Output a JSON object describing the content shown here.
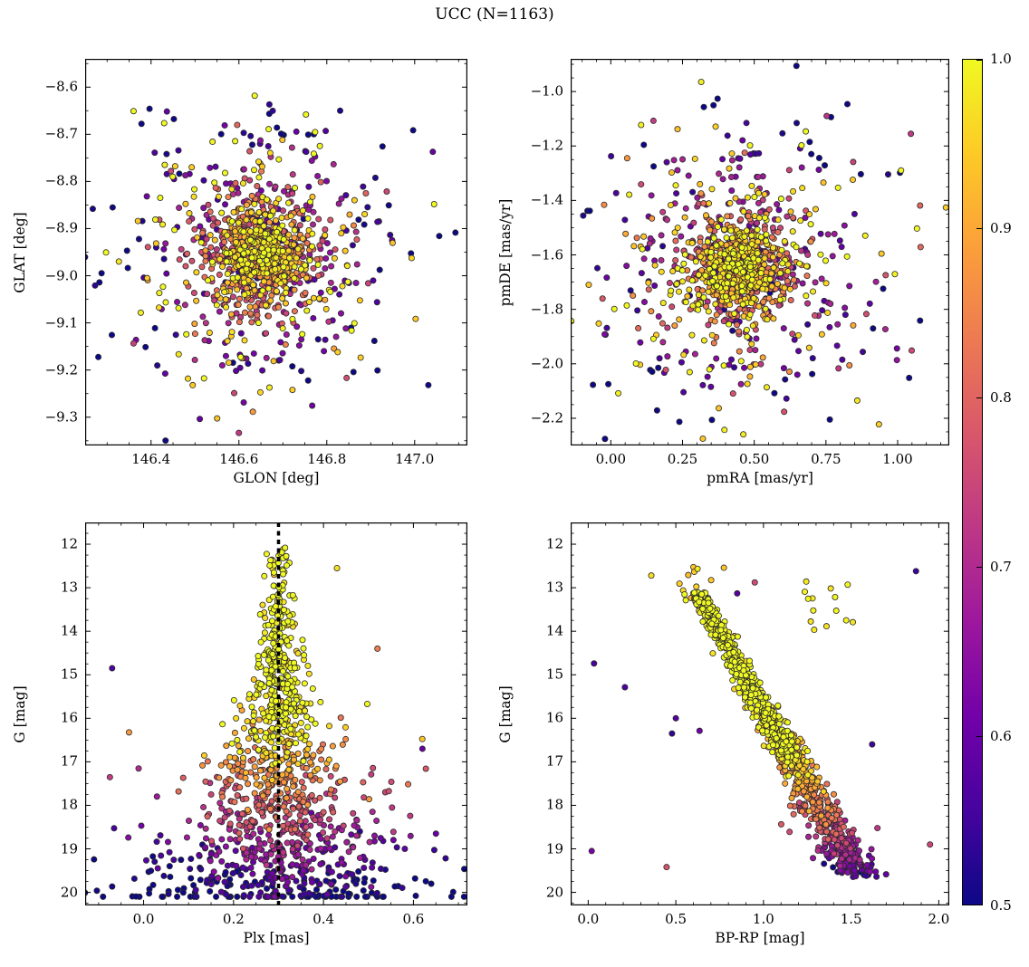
{
  "figure": {
    "title": "UCC (N=1163)",
    "background": "#ffffff",
    "n_members": 1163
  },
  "colorbar": {
    "min": 0.5,
    "max": 1.0,
    "tick_values": [
      1.0,
      0.9,
      0.8,
      0.7,
      0.6,
      0.5
    ],
    "tick_labels": [
      "1.0",
      "0.9",
      "0.8",
      "0.7",
      "0.6",
      "0.5"
    ],
    "colormap": "plasma",
    "stops": [
      {
        "t": 0.0,
        "color": "#0d0887"
      },
      {
        "t": 0.1111,
        "color": "#46039f"
      },
      {
        "t": 0.2222,
        "color": "#7201a8"
      },
      {
        "t": 0.3333,
        "color": "#9c179e"
      },
      {
        "t": 0.4444,
        "color": "#bd3786"
      },
      {
        "t": 0.5556,
        "color": "#d8576b"
      },
      {
        "t": 0.6667,
        "color": "#ed7953"
      },
      {
        "t": 0.7778,
        "color": "#fb9f3a"
      },
      {
        "t": 0.8889,
        "color": "#fdca26"
      },
      {
        "t": 1.0,
        "color": "#f0f921"
      }
    ]
  },
  "marker": {
    "size": 3.1,
    "edge_color": "#2a2a2a",
    "edge_width": 0.8
  },
  "chart_data": [
    {
      "id": "position",
      "type": "scatter",
      "xlabel": "GLON [deg]",
      "ylabel": "GLAT [deg]",
      "xlim": [
        146.25,
        147.12
      ],
      "ylim_bottom": -9.36,
      "ylim_top": -8.54,
      "xticks": {
        "values": [
          146.4,
          146.6,
          146.8,
          147.0
        ],
        "labels": [
          "146.4",
          "146.6",
          "146.8",
          "147.0"
        ],
        "minor_step": 0.05
      },
      "yticks": {
        "values": [
          -8.6,
          -8.7,
          -8.8,
          -8.9,
          -9.0,
          -9.1,
          -9.2,
          -9.3
        ],
        "labels": [
          "−8.6",
          "−8.7",
          "−8.8",
          "−8.9",
          "−9.0",
          "−9.1",
          "−9.2",
          "−9.3"
        ],
        "minor_step": 0.05
      },
      "n": 1163,
      "color_by": "membership probability",
      "gen": {
        "kind": "cluster",
        "seed": 101,
        "cx": 146.65,
        "cy": -8.95,
        "core_frac": 0.55,
        "core_sigma": 0.055,
        "halo_sigma": 0.155,
        "r_norm": 0.3
      },
      "extra_points": []
    },
    {
      "id": "proper-motion",
      "type": "scatter",
      "xlabel": "pmRA [mas/yr]",
      "ylabel": "pmDE [mas/yr]",
      "xlim": [
        -0.14,
        1.18
      ],
      "ylim_bottom": -2.3,
      "ylim_top": -0.88,
      "xticks": {
        "values": [
          0.0,
          0.25,
          0.5,
          0.75,
          1.0
        ],
        "labels": [
          "0.00",
          "0.25",
          "0.50",
          "0.75",
          "1.00"
        ],
        "minor_step": 0.05
      },
      "yticks": {
        "values": [
          -1.0,
          -1.2,
          -1.4,
          -1.6,
          -1.8,
          -2.0,
          -2.2
        ],
        "labels": [
          "−1.0",
          "−1.2",
          "−1.4",
          "−1.6",
          "−1.8",
          "−2.0",
          "−2.2"
        ],
        "minor_step": 0.05
      },
      "n": 1163,
      "color_by": "membership probability",
      "gen": {
        "kind": "cluster",
        "seed": 202,
        "cx": 0.45,
        "cy": -1.65,
        "core_frac": 0.55,
        "core_sigma": 0.085,
        "halo_sigma": 0.26,
        "r_norm": 0.5
      },
      "extra_points": []
    },
    {
      "id": "parallax",
      "type": "scatter",
      "xlabel": "Plx [mas]",
      "ylabel": "G [mag]",
      "xlim": [
        -0.13,
        0.72
      ],
      "ylim_bottom": 20.3,
      "ylim_top": 11.5,
      "xticks": {
        "values": [
          0.0,
          0.2,
          0.4,
          0.6
        ],
        "labels": [
          "0.0",
          "0.2",
          "0.4",
          "0.6"
        ],
        "minor_step": 0.05
      },
      "yticks": {
        "values": [
          12,
          13,
          14,
          15,
          16,
          17,
          18,
          19,
          20
        ],
        "labels": [
          "12",
          "13",
          "14",
          "15",
          "16",
          "17",
          "18",
          "19",
          "20"
        ],
        "minor_step": 0.25
      },
      "n": 1163,
      "color_by": "membership probability",
      "vline": {
        "x": 0.3,
        "color": "#000000",
        "width": 3.5,
        "dash": [
          5,
          4.5
        ]
      },
      "gen": {
        "kind": "funnel",
        "seed": 303,
        "center": 0.3,
        "g_min": 11.8,
        "g_span": 8.5,
        "g_pow": 0.55,
        "sigma_base": 0.013,
        "sigma_amp": 0.17,
        "sigma_pow": 2.3,
        "outlier_frac": 0.055
      },
      "extra_points": [
        {
          "x": -0.07,
          "y": 14.85,
          "p": 0.56
        },
        {
          "x": 0.52,
          "y": 14.4,
          "p": 0.84
        },
        {
          "x": 0.62,
          "y": 16.7,
          "p": 0.6
        },
        {
          "x": 0.43,
          "y": 12.55,
          "p": 0.97
        },
        {
          "x": 0.65,
          "y": 18.65,
          "p": 0.6
        }
      ]
    },
    {
      "id": "cmd",
      "type": "scatter",
      "xlabel": "BP-RP [mag]",
      "ylabel": "G [mag]",
      "xlim": [
        -0.1,
        2.06
      ],
      "ylim_bottom": 20.3,
      "ylim_top": 11.5,
      "xticks": {
        "values": [
          0.0,
          0.5,
          1.0,
          1.5,
          2.0
        ],
        "labels": [
          "0.0",
          "0.5",
          "1.0",
          "1.5",
          "2.0"
        ],
        "minor_step": 0.1
      },
      "yticks": {
        "values": [
          12,
          13,
          14,
          15,
          16,
          17,
          18,
          19,
          20
        ],
        "labels": [
          "12",
          "13",
          "14",
          "15",
          "16",
          "17",
          "18",
          "19",
          "20"
        ],
        "minor_step": 0.25
      },
      "n": 1163,
      "color_by": "membership probability",
      "gen": {
        "kind": "cmd",
        "seed": 404,
        "ms_color0": 0.62,
        "ms_base_g": 13.1,
        "ms_slope": 0.1405,
        "giants": {
          "n": 14,
          "bprp_mu": 1.38,
          "bprp_sigma": 0.07,
          "g_mu": 13.3,
          "g_sigma": 0.35
        },
        "bright": {
          "n": 10
        },
        "outliers": {
          "n": 10
        }
      },
      "extra_points": [
        {
          "x": 1.87,
          "y": 12.62,
          "p": 0.55
        },
        {
          "x": 0.02,
          "y": 19.05,
          "p": 0.62
        },
        {
          "x": 0.36,
          "y": 12.72,
          "p": 0.97
        },
        {
          "x": 1.62,
          "y": 16.6,
          "p": 0.55
        },
        {
          "x": 0.5,
          "y": 16.0,
          "p": 0.57
        },
        {
          "x": 1.95,
          "y": 18.9,
          "p": 0.75
        }
      ]
    }
  ]
}
